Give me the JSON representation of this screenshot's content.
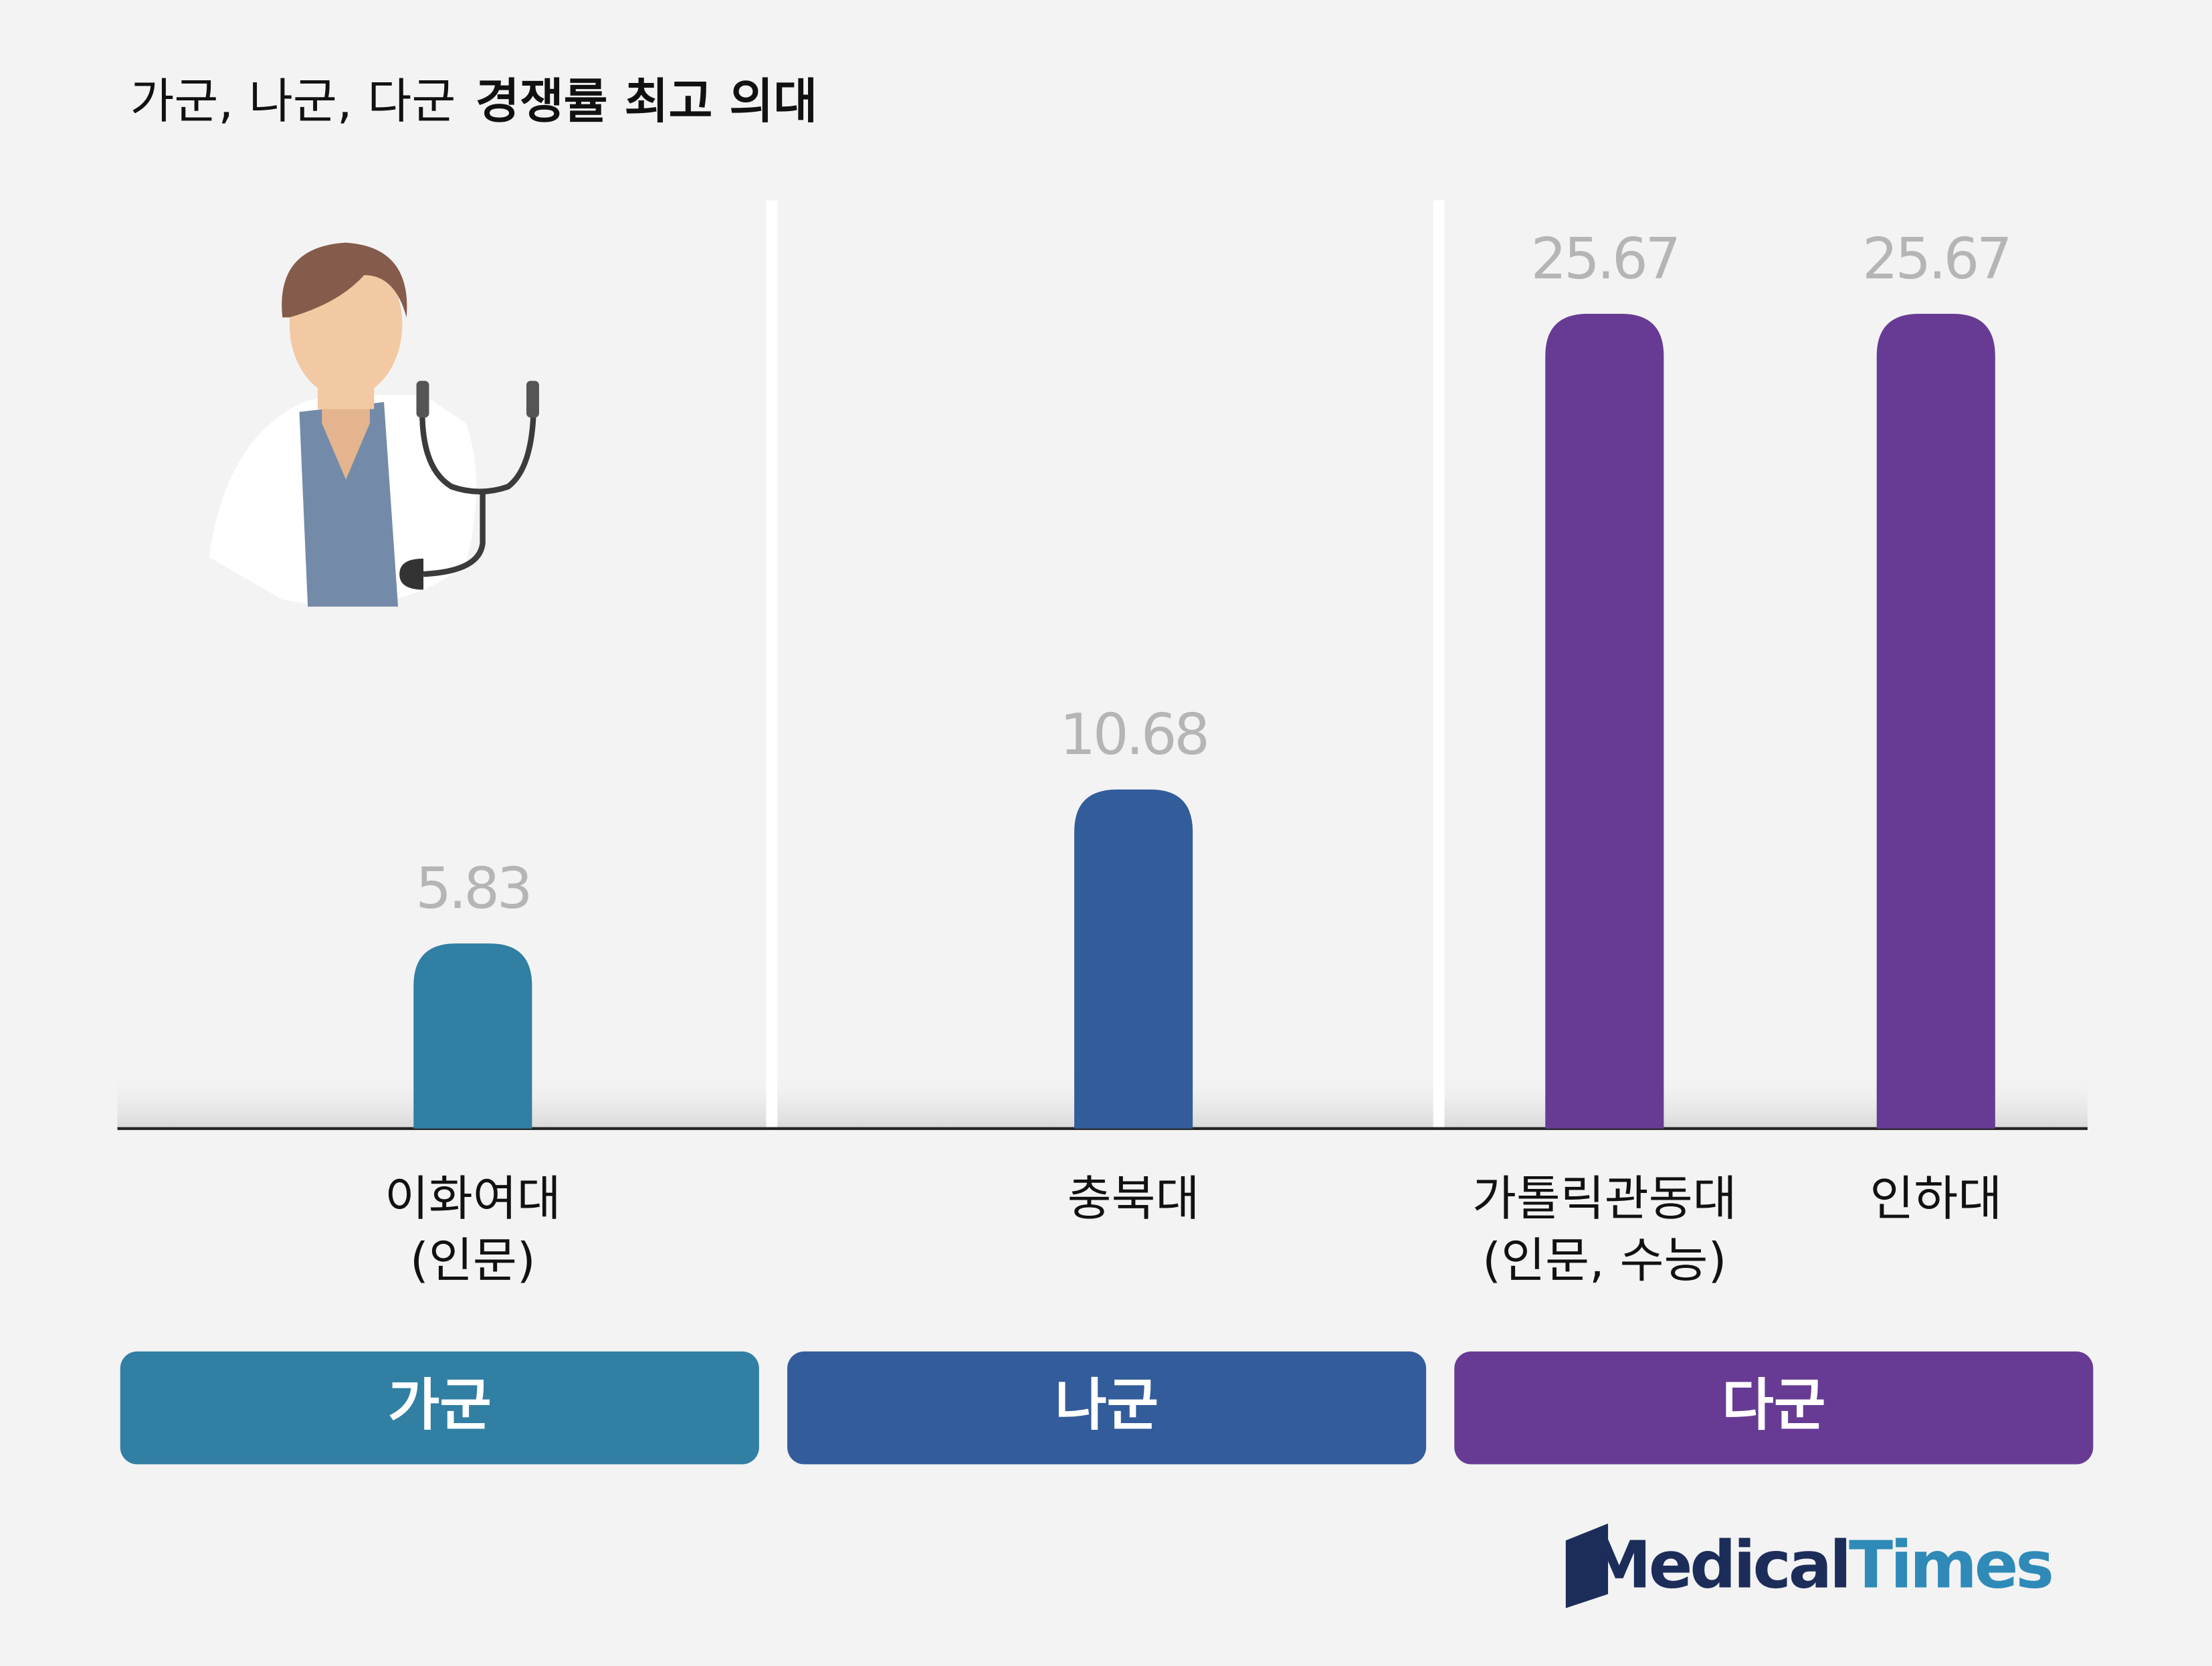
{
  "chart_data": {
    "type": "bar",
    "title": [
      "가군, 나군, 다군",
      "경쟁률 최고 의대"
    ],
    "groups": [
      {
        "name": "가군",
        "color": "#317fa3",
        "categories": [
          [
            "이화여대",
            "(인문)"
          ]
        ],
        "values": [
          5.83
        ]
      },
      {
        "name": "나군",
        "color": "#335c9b",
        "categories": [
          [
            "충북대"
          ]
        ],
        "values": [
          10.68
        ]
      },
      {
        "name": "다군",
        "color": "#673b94",
        "categories": [
          [
            "가톨릭관동대",
            "(인문, 수능)"
          ],
          [
            "인하대"
          ]
        ],
        "values": [
          25.67,
          25.67
        ]
      }
    ],
    "value_label_color": "#b5b5b5",
    "ylim": [
      0,
      30
    ],
    "logo": [
      "Medical",
      "Times"
    ]
  }
}
